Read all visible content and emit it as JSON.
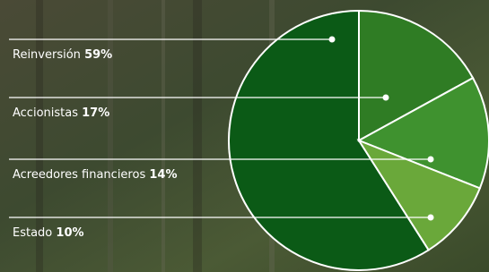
{
  "chart_data": {
    "type": "pie",
    "categories": [
      "Reinversión",
      "Accionistas",
      "Acreedores financieros",
      "Estado"
    ],
    "values": [
      59,
      17,
      14,
      10
    ],
    "value_labels": [
      "59%",
      "17%",
      "14%",
      "10%"
    ],
    "colors": [
      "#0b5a16",
      "#2f7c24",
      "#3f922f",
      "#6aa83a"
    ]
  }
}
